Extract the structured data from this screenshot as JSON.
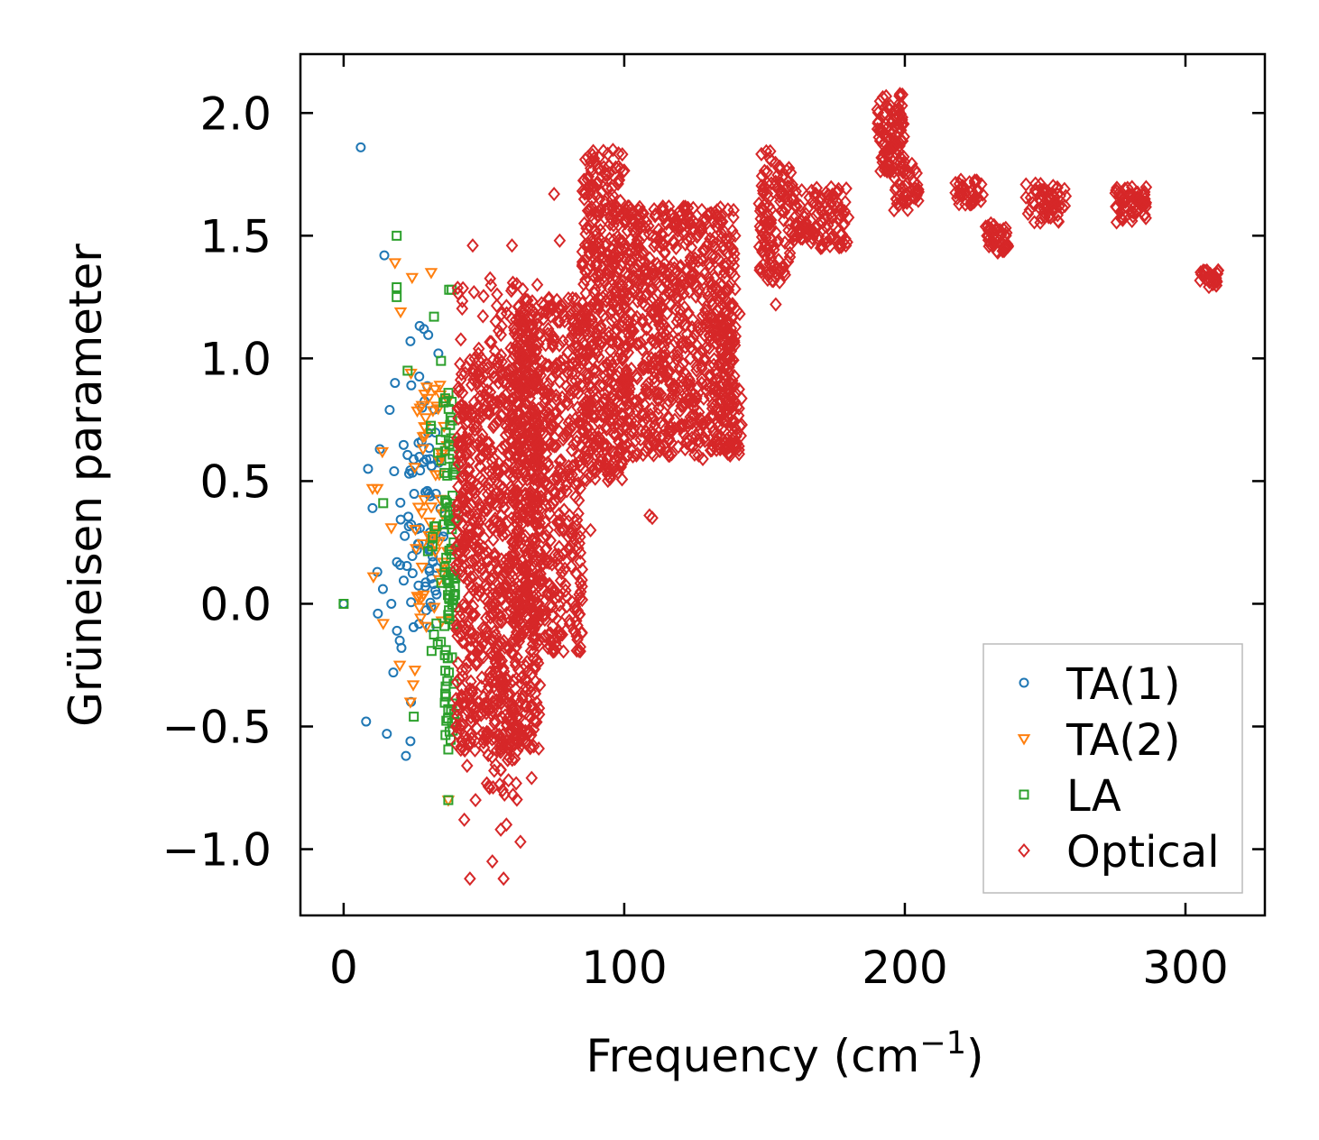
{
  "chart_data": {
    "type": "scatter",
    "title": "",
    "xlabel": "Frequency (cm",
    "xlabel_sup": "−1",
    "xlabel_close": ")",
    "ylabel": "Grüneisen parameter",
    "xlim": [
      -15.4,
      328.3
    ],
    "ylim": [
      -1.27,
      2.24
    ],
    "xticks": [
      0,
      100,
      200,
      300
    ],
    "xtick_labels": [
      "0",
      "100",
      "200",
      "300"
    ],
    "yticks": [
      -1.0,
      -0.5,
      0.0,
      0.5,
      1.0,
      1.5,
      2.0
    ],
    "ytick_labels": [
      "−1.0",
      "−0.5",
      "0.0",
      "0.5",
      "1.0",
      "1.5",
      "2.0"
    ],
    "grid": false,
    "legend_position": "lower-right",
    "series": [
      {
        "name": "TA(1)",
        "marker": "circle",
        "color": "#1f77b4",
        "points": [
          [
            6.1,
            1.86
          ],
          [
            8,
            -0.48
          ],
          [
            15.4,
            -0.53
          ],
          [
            14.5,
            1.42
          ],
          [
            0,
            0
          ],
          [
            8.7,
            0.55
          ],
          [
            10.3,
            0.39
          ],
          [
            12.9,
            0.63
          ],
          [
            16.4,
            0.79
          ],
          [
            18,
            0.54
          ],
          [
            18.3,
            0.9
          ],
          [
            23.8,
            1.07
          ],
          [
            24.1,
            0.89
          ],
          [
            28.6,
            1.12
          ],
          [
            17.7,
            -0.28
          ],
          [
            22.2,
            -0.62
          ],
          [
            23.8,
            -0.56
          ],
          [
            20.6,
            -0.18
          ],
          [
            12.2,
            -0.04
          ],
          [
            19,
            -0.11
          ],
          [
            14,
            0.06
          ],
          [
            17,
            0.0
          ],
          [
            19,
            0.17
          ],
          [
            12,
            0.13
          ],
          [
            20,
            -0.15
          ],
          [
            24,
            -0.4
          ]
        ],
        "clusters": [
          {
            "x": [
              20,
              36
            ],
            "y": [
              -0.1,
              0.7
            ],
            "n": 70
          },
          {
            "x": [
              26,
              34
            ],
            "y": [
              0.6,
              1.2
            ],
            "n": 8
          }
        ]
      },
      {
        "name": "TA(2)",
        "marker": "triangle-down",
        "color": "#ff7f0e",
        "points": [
          [
            18.3,
            1.39
          ],
          [
            24.4,
            1.33
          ],
          [
            31.2,
            1.35
          ],
          [
            20.3,
            1.19
          ],
          [
            13.8,
            0.62
          ],
          [
            10.3,
            0.47
          ],
          [
            10.6,
            0.11
          ],
          [
            14.1,
            -0.08
          ],
          [
            20,
            -0.25
          ],
          [
            25.4,
            -0.27
          ],
          [
            23.8,
            -0.4
          ],
          [
            24.8,
            -0.33
          ],
          [
            17,
            0.31
          ],
          [
            12,
            0.47
          ],
          [
            24,
            0.94
          ],
          [
            37.3,
            -0.8
          ]
        ],
        "clusters": [
          {
            "x": [
              25,
              38
            ],
            "y": [
              -0.1,
              0.9
            ],
            "n": 60
          }
        ]
      },
      {
        "name": "LA",
        "marker": "square",
        "color": "#2ca02c",
        "points": [
          [
            18.9,
            1.5
          ],
          [
            18.9,
            1.29
          ],
          [
            18.9,
            1.25
          ],
          [
            22.8,
            0.95
          ],
          [
            14.1,
            0.41
          ],
          [
            25,
            -0.46
          ],
          [
            37.3,
            -0.8
          ],
          [
            37.6,
            1.28
          ],
          [
            32.2,
            1.17
          ],
          [
            34.7,
            0.99
          ],
          [
            38.5,
            1.28
          ],
          [
            0,
            0
          ]
        ],
        "clusters": [
          {
            "x": [
              36,
              40
            ],
            "y": [
              -0.6,
              0.85
            ],
            "n": 80
          },
          {
            "x": [
              30,
              38
            ],
            "y": [
              -0.2,
              0.9
            ],
            "n": 30
          }
        ]
      },
      {
        "name": "Optical",
        "marker": "diamond",
        "color": "#d62728",
        "points": [
          [
            45,
            -1.12
          ],
          [
            57,
            -1.12
          ],
          [
            53,
            -1.05
          ],
          [
            63,
            -0.97
          ],
          [
            56,
            -0.92
          ],
          [
            47,
            -0.8
          ],
          [
            43,
            -0.88
          ],
          [
            67,
            -0.71
          ],
          [
            46,
            1.46
          ],
          [
            60,
            1.46
          ],
          [
            75,
            1.67
          ],
          [
            110,
            0.35
          ],
          [
            109,
            0.36
          ],
          [
            85,
            0.14
          ],
          [
            95,
            0.55
          ],
          [
            128,
            0.59
          ],
          [
            87,
            1.82
          ],
          [
            88,
            0.3
          ],
          [
            58,
            -0.9
          ],
          [
            52,
            -0.75
          ],
          [
            44,
            -0.66
          ],
          [
            77,
            1.48
          ],
          [
            69,
            1.3
          ],
          [
            154,
            1.22
          ],
          [
            170,
            1.45
          ]
        ],
        "clusters": [
          {
            "x": [
              40,
              70
            ],
            "y": [
              -0.6,
              1.0
            ],
            "n": 900
          },
          {
            "x": [
              50,
              62
            ],
            "y": [
              -0.8,
              -0.3
            ],
            "n": 60
          },
          {
            "x": [
              40,
              65
            ],
            "y": [
              0.9,
              1.35
            ],
            "n": 60
          },
          {
            "x": [
              60,
              85
            ],
            "y": [
              -0.2,
              1.25
            ],
            "n": 600
          },
          {
            "x": [
              85,
              100
            ],
            "y": [
              0.5,
              1.85
            ],
            "n": 450
          },
          {
            "x": [
              100,
              140
            ],
            "y": [
              0.6,
              1.62
            ],
            "n": 800
          },
          {
            "x": [
              132,
              142
            ],
            "y": [
              0.6,
              1.2
            ],
            "n": 80
          },
          {
            "x": [
              148,
              160
            ],
            "y": [
              1.3,
              1.85
            ],
            "n": 120
          },
          {
            "x": [
              160,
              180
            ],
            "y": [
              1.45,
              1.7
            ],
            "n": 120
          },
          {
            "x": [
              190,
              200
            ],
            "y": [
              1.75,
              2.08
            ],
            "n": 100
          },
          {
            "x": [
              196,
              205
            ],
            "y": [
              1.6,
              1.8
            ],
            "n": 40
          },
          {
            "x": [
              218,
              228
            ],
            "y": [
              1.62,
              1.73
            ],
            "n": 40
          },
          {
            "x": [
              228,
              237
            ],
            "y": [
              1.43,
              1.55
            ],
            "n": 40
          },
          {
            "x": [
              243,
              258
            ],
            "y": [
              1.55,
              1.72
            ],
            "n": 60
          },
          {
            "x": [
              275,
              286
            ],
            "y": [
              1.55,
              1.7
            ],
            "n": 60
          },
          {
            "x": [
              305,
              313
            ],
            "y": [
              1.29,
              1.36
            ],
            "n": 30
          }
        ]
      }
    ]
  }
}
